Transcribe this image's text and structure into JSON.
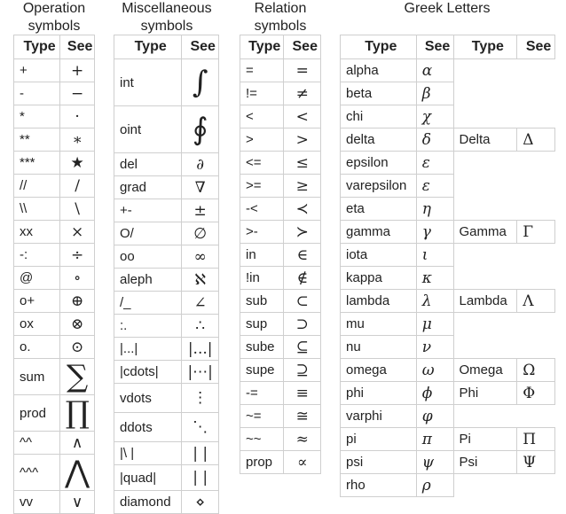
{
  "sections": [
    {
      "title": "Operation\nsymbols"
    },
    {
      "title": "Miscellaneous\nsymbols"
    },
    {
      "title": "Relation\nsymbols"
    },
    {
      "title": "Greek Letters"
    }
  ],
  "headers": {
    "type": "Type",
    "see": "See"
  },
  "operation": [
    {
      "type": "+",
      "see": "+"
    },
    {
      "type": "-",
      "see": "−"
    },
    {
      "type": "*",
      "see": "·"
    },
    {
      "type": "**",
      "see": "∗"
    },
    {
      "type": "***",
      "see": "★"
    },
    {
      "type": "//",
      "see": "/"
    },
    {
      "type": "\\\\",
      "see": "\\"
    },
    {
      "type": "xx",
      "see": "×"
    },
    {
      "type": "-:",
      "see": "÷"
    },
    {
      "type": "@",
      "see": "∘"
    },
    {
      "type": "o+",
      "see": "⊕"
    },
    {
      "type": "ox",
      "see": "⊗"
    },
    {
      "type": "o.",
      "see": "⊙"
    },
    {
      "type": "sum",
      "see": "∑"
    },
    {
      "type": "prod",
      "see": "∏"
    },
    {
      "type": "^^",
      "see": "∧"
    },
    {
      "type": "^^^",
      "see": "⋀"
    },
    {
      "type": "vv",
      "see": "∨"
    }
  ],
  "misc": [
    {
      "type": "int",
      "see": "∫"
    },
    {
      "type": "oint",
      "see": "∮"
    },
    {
      "type": "del",
      "see": "∂"
    },
    {
      "type": "grad",
      "see": "∇"
    },
    {
      "type": "+-",
      "see": "±"
    },
    {
      "type": "O/",
      "see": "∅"
    },
    {
      "type": "oo",
      "see": "∞"
    },
    {
      "type": "aleph",
      "see": "ℵ"
    },
    {
      "type": "/_",
      "see": "∠"
    },
    {
      "type": ":.",
      "see": "∴"
    },
    {
      "type": "|...|",
      "see": "|...|"
    },
    {
      "type": "|cdots|",
      "see": "|⋯|"
    },
    {
      "type": "vdots",
      "see": "⋮"
    },
    {
      "type": "ddots",
      "see": "⋱"
    },
    {
      "type": "|\\ |",
      "see": "| |"
    },
    {
      "type": "|quad|",
      "see": "|  |"
    },
    {
      "type": "diamond",
      "see": "⋄"
    }
  ],
  "relation": [
    {
      "type": "=",
      "see": "="
    },
    {
      "type": "!=",
      "see": "≠"
    },
    {
      "type": "<",
      "see": "<"
    },
    {
      "type": ">",
      "see": ">"
    },
    {
      "type": "<=",
      "see": "≤"
    },
    {
      "type": ">=",
      "see": "≥"
    },
    {
      "type": "-<",
      "see": "≺"
    },
    {
      "type": ">-",
      "see": "≻"
    },
    {
      "type": "in",
      "see": "∈"
    },
    {
      "type": "!in",
      "see": "∉"
    },
    {
      "type": "sub",
      "see": "⊂"
    },
    {
      "type": "sup",
      "see": "⊃"
    },
    {
      "type": "sube",
      "see": "⊆"
    },
    {
      "type": "supe",
      "see": "⊇"
    },
    {
      "type": "-=",
      "see": "≡"
    },
    {
      "type": "~=",
      "see": "≅"
    },
    {
      "type": "~~",
      "see": "≈"
    },
    {
      "type": "prop",
      "see": "∝"
    }
  ],
  "greek": [
    {
      "type": "alpha",
      "see": "α"
    },
    {
      "type": "beta",
      "see": "β"
    },
    {
      "type": "chi",
      "see": "χ"
    },
    {
      "type": "delta",
      "see": "δ",
      "type2": "Delta",
      "see2": "Δ"
    },
    {
      "type": "epsilon",
      "see": "ε"
    },
    {
      "type": "varepsilon",
      "see": "ε"
    },
    {
      "type": "eta",
      "see": "η"
    },
    {
      "type": "gamma",
      "see": "γ",
      "type2": "Gamma",
      "see2": "Γ"
    },
    {
      "type": "iota",
      "see": "ι"
    },
    {
      "type": "kappa",
      "see": "κ"
    },
    {
      "type": "lambda",
      "see": "λ",
      "type2": "Lambda",
      "see2": "Λ"
    },
    {
      "type": "mu",
      "see": "μ"
    },
    {
      "type": "nu",
      "see": "ν"
    },
    {
      "type": "omega",
      "see": "ω",
      "type2": "Omega",
      "see2": "Ω"
    },
    {
      "type": "phi",
      "see": "ϕ",
      "type2": "Phi",
      "see2": "Φ"
    },
    {
      "type": "varphi",
      "see": "φ"
    },
    {
      "type": "pi",
      "see": "π",
      "type2": "Pi",
      "see2": "Π"
    },
    {
      "type": "psi",
      "see": "ψ",
      "type2": "Psi",
      "see2": "Ψ"
    },
    {
      "type": "rho",
      "see": "ρ"
    }
  ]
}
